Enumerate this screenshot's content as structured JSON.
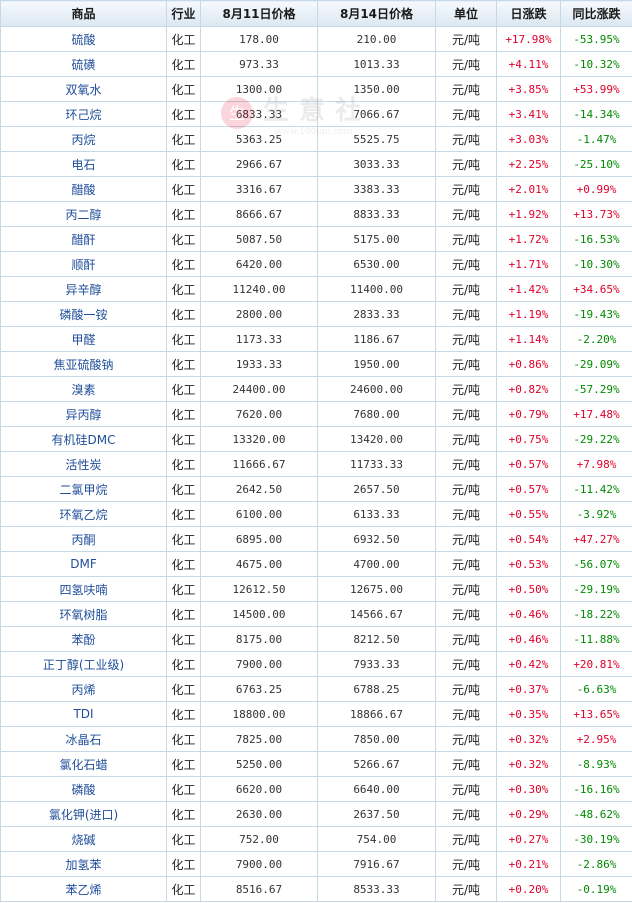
{
  "table": {
    "headers": {
      "product": "商品",
      "industry": "行业",
      "price_aug11": "8月11日价格",
      "price_aug14": "8月14日价格",
      "unit": "单位",
      "daily_change": "日涨跌",
      "yoy_change": "同比涨跌"
    },
    "rows": [
      {
        "name": "硫酸",
        "industry": "化工",
        "p1": "178.00",
        "p2": "210.00",
        "unit": "元/吨",
        "daily": "+17.98%",
        "yoy": "-53.95%"
      },
      {
        "name": "硫磺",
        "industry": "化工",
        "p1": "973.33",
        "p2": "1013.33",
        "unit": "元/吨",
        "daily": "+4.11%",
        "yoy": "-10.32%"
      },
      {
        "name": "双氧水",
        "industry": "化工",
        "p1": "1300.00",
        "p2": "1350.00",
        "unit": "元/吨",
        "daily": "+3.85%",
        "yoy": "+53.99%"
      },
      {
        "name": "环己烷",
        "industry": "化工",
        "p1": "6833.33",
        "p2": "7066.67",
        "unit": "元/吨",
        "daily": "+3.41%",
        "yoy": "-14.34%"
      },
      {
        "name": "丙烷",
        "industry": "化工",
        "p1": "5363.25",
        "p2": "5525.75",
        "unit": "元/吨",
        "daily": "+3.03%",
        "yoy": "-1.47%"
      },
      {
        "name": "电石",
        "industry": "化工",
        "p1": "2966.67",
        "p2": "3033.33",
        "unit": "元/吨",
        "daily": "+2.25%",
        "yoy": "-25.10%"
      },
      {
        "name": "醋酸",
        "industry": "化工",
        "p1": "3316.67",
        "p2": "3383.33",
        "unit": "元/吨",
        "daily": "+2.01%",
        "yoy": "+0.99%"
      },
      {
        "name": "丙二醇",
        "industry": "化工",
        "p1": "8666.67",
        "p2": "8833.33",
        "unit": "元/吨",
        "daily": "+1.92%",
        "yoy": "+13.73%"
      },
      {
        "name": "醋酐",
        "industry": "化工",
        "p1": "5087.50",
        "p2": "5175.00",
        "unit": "元/吨",
        "daily": "+1.72%",
        "yoy": "-16.53%"
      },
      {
        "name": "顺酐",
        "industry": "化工",
        "p1": "6420.00",
        "p2": "6530.00",
        "unit": "元/吨",
        "daily": "+1.71%",
        "yoy": "-10.30%"
      },
      {
        "name": "异辛醇",
        "industry": "化工",
        "p1": "11240.00",
        "p2": "11400.00",
        "unit": "元/吨",
        "daily": "+1.42%",
        "yoy": "+34.65%"
      },
      {
        "name": "磷酸一铵",
        "industry": "化工",
        "p1": "2800.00",
        "p2": "2833.33",
        "unit": "元/吨",
        "daily": "+1.19%",
        "yoy": "-19.43%"
      },
      {
        "name": "甲醛",
        "industry": "化工",
        "p1": "1173.33",
        "p2": "1186.67",
        "unit": "元/吨",
        "daily": "+1.14%",
        "yoy": "-2.20%"
      },
      {
        "name": "焦亚硫酸钠",
        "industry": "化工",
        "p1": "1933.33",
        "p2": "1950.00",
        "unit": "元/吨",
        "daily": "+0.86%",
        "yoy": "-29.09%"
      },
      {
        "name": "溴素",
        "industry": "化工",
        "p1": "24400.00",
        "p2": "24600.00",
        "unit": "元/吨",
        "daily": "+0.82%",
        "yoy": "-57.29%"
      },
      {
        "name": "异丙醇",
        "industry": "化工",
        "p1": "7620.00",
        "p2": "7680.00",
        "unit": "元/吨",
        "daily": "+0.79%",
        "yoy": "+17.48%"
      },
      {
        "name": "有机硅DMC",
        "industry": "化工",
        "p1": "13320.00",
        "p2": "13420.00",
        "unit": "元/吨",
        "daily": "+0.75%",
        "yoy": "-29.22%"
      },
      {
        "name": "活性炭",
        "industry": "化工",
        "p1": "11666.67",
        "p2": "11733.33",
        "unit": "元/吨",
        "daily": "+0.57%",
        "yoy": "+7.98%"
      },
      {
        "name": "二氯甲烷",
        "industry": "化工",
        "p1": "2642.50",
        "p2": "2657.50",
        "unit": "元/吨",
        "daily": "+0.57%",
        "yoy": "-11.42%"
      },
      {
        "name": "环氧乙烷",
        "industry": "化工",
        "p1": "6100.00",
        "p2": "6133.33",
        "unit": "元/吨",
        "daily": "+0.55%",
        "yoy": "-3.92%"
      },
      {
        "name": "丙酮",
        "industry": "化工",
        "p1": "6895.00",
        "p2": "6932.50",
        "unit": "元/吨",
        "daily": "+0.54%",
        "yoy": "+47.27%"
      },
      {
        "name": "DMF",
        "industry": "化工",
        "p1": "4675.00",
        "p2": "4700.00",
        "unit": "元/吨",
        "daily": "+0.53%",
        "yoy": "-56.07%"
      },
      {
        "name": "四氢呋喃",
        "industry": "化工",
        "p1": "12612.50",
        "p2": "12675.00",
        "unit": "元/吨",
        "daily": "+0.50%",
        "yoy": "-29.19%"
      },
      {
        "name": "环氧树脂",
        "industry": "化工",
        "p1": "14500.00",
        "p2": "14566.67",
        "unit": "元/吨",
        "daily": "+0.46%",
        "yoy": "-18.22%"
      },
      {
        "name": "苯酚",
        "industry": "化工",
        "p1": "8175.00",
        "p2": "8212.50",
        "unit": "元/吨",
        "daily": "+0.46%",
        "yoy": "-11.88%"
      },
      {
        "name": "正丁醇(工业级)",
        "industry": "化工",
        "p1": "7900.00",
        "p2": "7933.33",
        "unit": "元/吨",
        "daily": "+0.42%",
        "yoy": "+20.81%"
      },
      {
        "name": "丙烯",
        "industry": "化工",
        "p1": "6763.25",
        "p2": "6788.25",
        "unit": "元/吨",
        "daily": "+0.37%",
        "yoy": "-6.63%"
      },
      {
        "name": "TDI",
        "industry": "化工",
        "p1": "18800.00",
        "p2": "18866.67",
        "unit": "元/吨",
        "daily": "+0.35%",
        "yoy": "+13.65%"
      },
      {
        "name": "冰晶石",
        "industry": "化工",
        "p1": "7825.00",
        "p2": "7850.00",
        "unit": "元/吨",
        "daily": "+0.32%",
        "yoy": "+2.95%"
      },
      {
        "name": "氯化石蜡",
        "industry": "化工",
        "p1": "5250.00",
        "p2": "5266.67",
        "unit": "元/吨",
        "daily": "+0.32%",
        "yoy": "-8.93%"
      },
      {
        "name": "磷酸",
        "industry": "化工",
        "p1": "6620.00",
        "p2": "6640.00",
        "unit": "元/吨",
        "daily": "+0.30%",
        "yoy": "-16.16%"
      },
      {
        "name": "氯化钾(进口)",
        "industry": "化工",
        "p1": "2630.00",
        "p2": "2637.50",
        "unit": "元/吨",
        "daily": "+0.29%",
        "yoy": "-48.62%"
      },
      {
        "name": "烧碱",
        "industry": "化工",
        "p1": "752.00",
        "p2": "754.00",
        "unit": "元/吨",
        "daily": "+0.27%",
        "yoy": "-30.19%"
      },
      {
        "name": "加氢苯",
        "industry": "化工",
        "p1": "7900.00",
        "p2": "7916.67",
        "unit": "元/吨",
        "daily": "+0.21%",
        "yoy": "-2.86%"
      },
      {
        "name": "苯乙烯",
        "industry": "化工",
        "p1": "8516.67",
        "p2": "8533.33",
        "unit": "元/吨",
        "daily": "+0.20%",
        "yoy": "-0.19%"
      }
    ]
  },
  "watermark": {
    "text": "生意社",
    "url_text": "www.100ppi.com"
  },
  "colors": {
    "up": "#e0002a",
    "down": "#008a00",
    "name_link": "#1f4e9a",
    "header_bg": "#dbe7f1",
    "border": "#c5d9e8"
  }
}
